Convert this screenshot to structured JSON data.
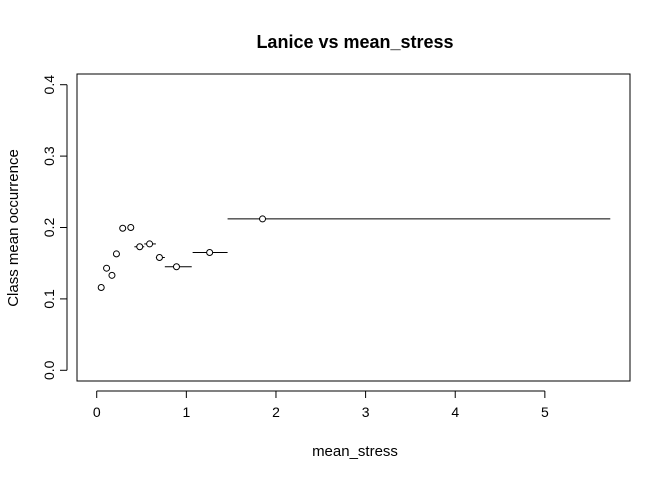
{
  "chart_data": {
    "type": "scatter",
    "title": "Lanice vs mean_stress",
    "xlabel": "mean_stress",
    "ylabel": "Class mean occurrence",
    "xlim": [
      -0.22,
      5.95
    ],
    "ylim": [
      -0.015,
      0.415
    ],
    "xticks": [
      0,
      1,
      2,
      3,
      4,
      5
    ],
    "yticks": [
      0.0,
      0.1,
      0.2,
      0.3,
      0.4
    ],
    "xtick_labels": [
      "0",
      "1",
      "2",
      "3",
      "4",
      "5"
    ],
    "ytick_labels": [
      "0.0",
      "0.1",
      "0.2",
      "0.3",
      "0.4"
    ],
    "grid": false,
    "legend": "none",
    "points": [
      {
        "x": 0.05,
        "y": 0.116,
        "xmin": 0.05,
        "xmax": 0.05
      },
      {
        "x": 0.11,
        "y": 0.143,
        "xmin": 0.11,
        "xmax": 0.11
      },
      {
        "x": 0.17,
        "y": 0.133,
        "xmin": 0.17,
        "xmax": 0.17
      },
      {
        "x": 0.22,
        "y": 0.163,
        "xmin": 0.22,
        "xmax": 0.22
      },
      {
        "x": 0.29,
        "y": 0.199,
        "xmin": 0.29,
        "xmax": 0.29
      },
      {
        "x": 0.38,
        "y": 0.2,
        "xmin": 0.38,
        "xmax": 0.38
      },
      {
        "x": 0.48,
        "y": 0.173,
        "xmin": 0.42,
        "xmax": 0.53
      },
      {
        "x": 0.59,
        "y": 0.177,
        "xmin": 0.53,
        "xmax": 0.66
      },
      {
        "x": 0.7,
        "y": 0.158,
        "xmin": 0.66,
        "xmax": 0.76
      },
      {
        "x": 0.89,
        "y": 0.145,
        "xmin": 0.76,
        "xmax": 1.06
      },
      {
        "x": 1.26,
        "y": 0.165,
        "xmin": 1.07,
        "xmax": 1.46
      },
      {
        "x": 1.85,
        "y": 0.212,
        "xmin": 1.46,
        "xmax": 5.73
      }
    ]
  }
}
